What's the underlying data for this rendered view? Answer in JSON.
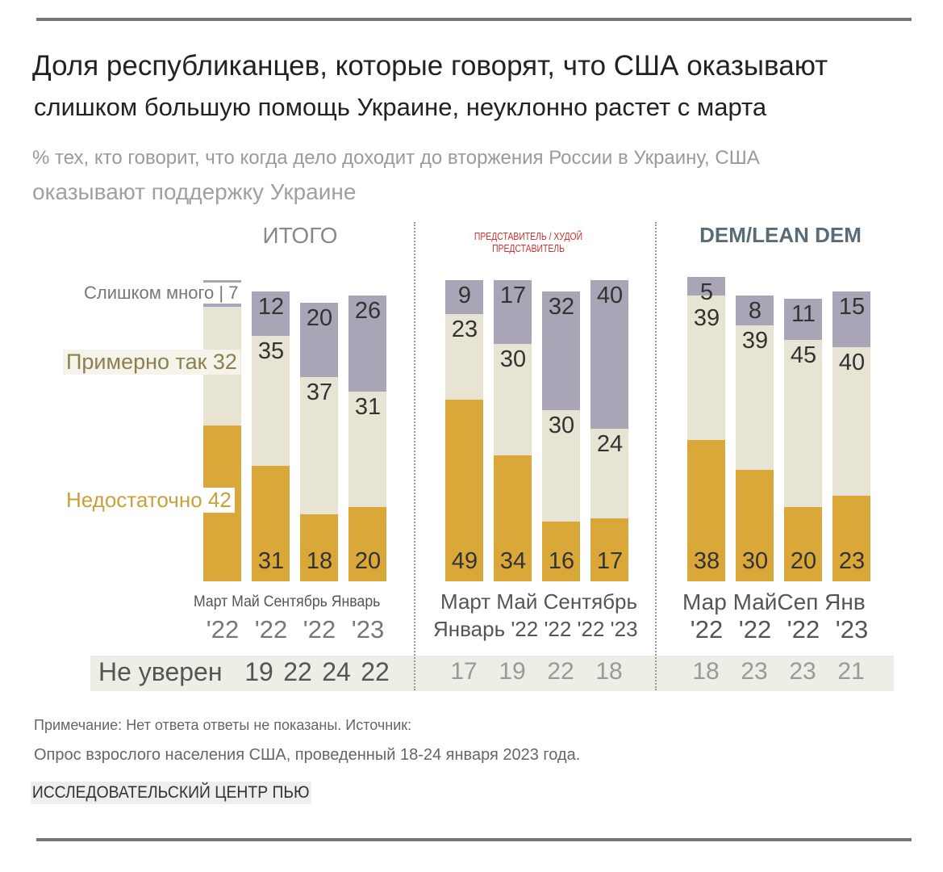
{
  "title_line1": "Доля республиканцев, которые говорят, что США оказывают",
  "title_line2": "слишком большую помощь Украине, неуклонно растет с марта",
  "subtitle_line1": "% тех, кто говорит, что когда дело доходит до вторжения России в Украину, США",
  "subtitle_line2": "оказывают поддержку Украине",
  "legend": {
    "too_much": "Слишком много | 7",
    "about_right": "Примерно так 32",
    "not_enough": "Недостаточно 42"
  },
  "not_sure_label": "Не уверен",
  "note_line1": "Примечание: Нет ответа ответы не показаны. Источник:",
  "note_line2": "Опрос взрослого населения США, проведенный 18-24 января 2023 года.",
  "source": "ИССЛЕДОВАТЕЛЬСКИЙ ЦЕНТР ПЬЮ",
  "colors": {
    "not_enough": "#d9a838",
    "about_right": "#e7e4d4",
    "too_much": "#a9a5b6"
  },
  "chart_data": {
    "type": "bar",
    "stacked": true,
    "ylim": [
      0,
      100
    ],
    "grid": false,
    "groups": [
      {
        "title": "ИТОГО",
        "title_color": "#888888",
        "categories": [
          "Март '22",
          "Май '22",
          "Сентябрь '22",
          "Январь '23"
        ],
        "xlabel_line1": "Март Май Сентябрь Январь",
        "xlabel_line2": [
          "'22",
          "'22",
          "'22",
          "'23"
        ],
        "series": [
          {
            "name": "Недостаточно",
            "values": [
              42,
              31,
              18,
              20
            ]
          },
          {
            "name": "Примерно так",
            "values": [
              32,
              35,
              37,
              31
            ]
          },
          {
            "name": "Слишком много",
            "values": [
              7,
              12,
              20,
              26
            ]
          }
        ],
        "not_sure": [
          19,
          22,
          24,
          22
        ]
      },
      {
        "title": "ПРЕДСТАВИТЕЛЬ / ХУДОЙ ПРЕДСТАВИТЕЛЬ",
        "title_color": "#d03030",
        "categories": [
          "Март '22",
          "Май '22",
          "Сентябрь '22",
          "Январь '23"
        ],
        "xlabel_line1": "Март Май Сентябрь",
        "xlabel_line2_text": "Январь '22 '22 '22 '23",
        "series": [
          {
            "name": "Недостаточно",
            "values": [
              49,
              34,
              16,
              17
            ]
          },
          {
            "name": "Примерно так",
            "values": [
              23,
              30,
              30,
              24
            ]
          },
          {
            "name": "Слишком много",
            "values": [
              9,
              17,
              32,
              40
            ]
          }
        ],
        "not_sure": [
          17,
          19,
          22,
          18
        ]
      },
      {
        "title": "DEM/LEAN DEM",
        "title_color": "#5a6b78",
        "categories": [
          "Мар '22",
          "Май '22",
          "Сеп '22",
          "Янв '23"
        ],
        "xlabel_line1": "Мар МайСеп Янв",
        "xlabel_line2": [
          "'22",
          "'22",
          "'22",
          "'23"
        ],
        "series": [
          {
            "name": "Недостаточно",
            "values": [
              38,
              30,
              20,
              23
            ]
          },
          {
            "name": "Примерно так",
            "values": [
              39,
              39,
              45,
              40
            ]
          },
          {
            "name": "Слишком много",
            "values": [
              5,
              8,
              11,
              15
            ]
          }
        ],
        "not_sure": [
          18,
          23,
          23,
          21
        ]
      }
    ]
  }
}
